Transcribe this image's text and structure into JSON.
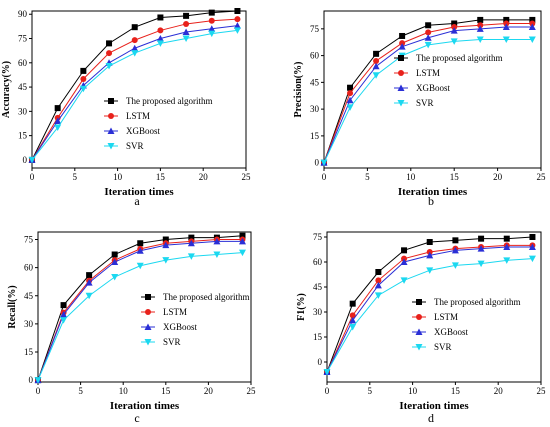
{
  "colors": {
    "The proposed algorithm": "#000000",
    "LSTM": "#e8211b",
    "XGBoost": "#2a2fd6",
    "SVR": "#1bd8f0"
  },
  "markers": {
    "The proposed algorithm": "square",
    "LSTM": "circle",
    "XGBoost": "triangle-up",
    "SVR": "triangle-down"
  },
  "chart_data": [
    {
      "type": "line",
      "sub_label": "a",
      "xlabel": "Iteration times",
      "ylabel": "Accuracy(%)",
      "xlim": [
        0,
        25
      ],
      "ylim": [
        -5,
        92
      ],
      "xticks": [
        0,
        5,
        10,
        15,
        20,
        25
      ],
      "yticks": [
        0,
        15,
        30,
        45,
        60,
        75,
        90
      ],
      "x": [
        0,
        3,
        6,
        9,
        12,
        15,
        18,
        21,
        24
      ],
      "legend_position": "center-right",
      "series": [
        {
          "name": "The proposed algorithm",
          "values": [
            0,
            32,
            55,
            72,
            82,
            88,
            89,
            91,
            92
          ]
        },
        {
          "name": "LSTM",
          "values": [
            0,
            26,
            50,
            66,
            74,
            80,
            84,
            86,
            87
          ]
        },
        {
          "name": "XGBoost",
          "values": [
            0,
            24,
            46,
            60,
            69,
            75,
            79,
            81,
            83
          ]
        },
        {
          "name": "SVR",
          "values": [
            0,
            20,
            44,
            58,
            66,
            72,
            75,
            78,
            80
          ]
        }
      ]
    },
    {
      "type": "line",
      "sub_label": "b",
      "xlabel": "Iteration times",
      "ylabel": "Precision(%)",
      "xlim": [
        0,
        25
      ],
      "ylim": [
        -3,
        85
      ],
      "xticks": [
        0,
        5,
        10,
        15,
        20,
        25
      ],
      "yticks": [
        0,
        15,
        30,
        45,
        60,
        75
      ],
      "x": [
        0,
        3,
        6,
        9,
        12,
        15,
        18,
        21,
        24
      ],
      "legend_position": "center-right",
      "series": [
        {
          "name": "The proposed algorithm",
          "values": [
            0,
            42,
            61,
            71,
            77,
            78,
            80,
            80,
            80
          ]
        },
        {
          "name": "LSTM",
          "values": [
            0,
            39,
            57,
            67,
            73,
            76,
            77,
            78,
            78
          ]
        },
        {
          "name": "XGBoost",
          "values": [
            0,
            35,
            54,
            65,
            70,
            74,
            75,
            76,
            76
          ]
        },
        {
          "name": "SVR",
          "values": [
            0,
            31,
            49,
            60,
            66,
            68,
            69,
            69,
            69
          ]
        }
      ]
    },
    {
      "type": "line",
      "sub_label": "c",
      "xlabel": "Iteration times",
      "ylabel": "Recall(%)",
      "xlim": [
        0,
        25
      ],
      "ylim": [
        -1,
        79
      ],
      "xticks": [
        0,
        5,
        10,
        15,
        20,
        25
      ],
      "yticks": [
        0,
        15,
        30,
        45,
        60,
        75
      ],
      "x": [
        0,
        3,
        6,
        9,
        12,
        15,
        18,
        21,
        24
      ],
      "legend_position": "center-right",
      "series": [
        {
          "name": "The proposed algorithm",
          "values": [
            0,
            40,
            56,
            67,
            73,
            75,
            76,
            76,
            77
          ]
        },
        {
          "name": "LSTM",
          "values": [
            0,
            36,
            53,
            64,
            70,
            73,
            74,
            75,
            75
          ]
        },
        {
          "name": "XGBoost",
          "values": [
            0,
            35,
            52,
            63,
            69,
            72,
            73,
            74,
            74
          ]
        },
        {
          "name": "SVR",
          "values": [
            0,
            32,
            45,
            55,
            61,
            64,
            66,
            67,
            68
          ]
        }
      ]
    },
    {
      "type": "line",
      "sub_label": "d",
      "xlabel": "Iteration times",
      "ylabel": "F1(%)",
      "xlim": [
        0,
        25
      ],
      "ylim": [
        -12,
        78
      ],
      "xticks": [
        0,
        5,
        10,
        15,
        20,
        25
      ],
      "yticks": [
        0,
        15,
        30,
        45,
        60,
        75
      ],
      "x": [
        0,
        3,
        6,
        9,
        12,
        15,
        18,
        21,
        24
      ],
      "legend_position": "center-right",
      "series": [
        {
          "name": "The proposed algorithm",
          "values": [
            -6,
            35,
            54,
            67,
            72,
            73,
            74,
            74,
            75
          ]
        },
        {
          "name": "LSTM",
          "values": [
            -6,
            28,
            49,
            62,
            66,
            68,
            69,
            70,
            70
          ]
        },
        {
          "name": "XGBoost",
          "values": [
            -6,
            25,
            46,
            60,
            64,
            67,
            68,
            69,
            69
          ]
        },
        {
          "name": "SVR",
          "values": [
            -6,
            21,
            40,
            49,
            55,
            58,
            59,
            61,
            62
          ]
        }
      ]
    }
  ]
}
